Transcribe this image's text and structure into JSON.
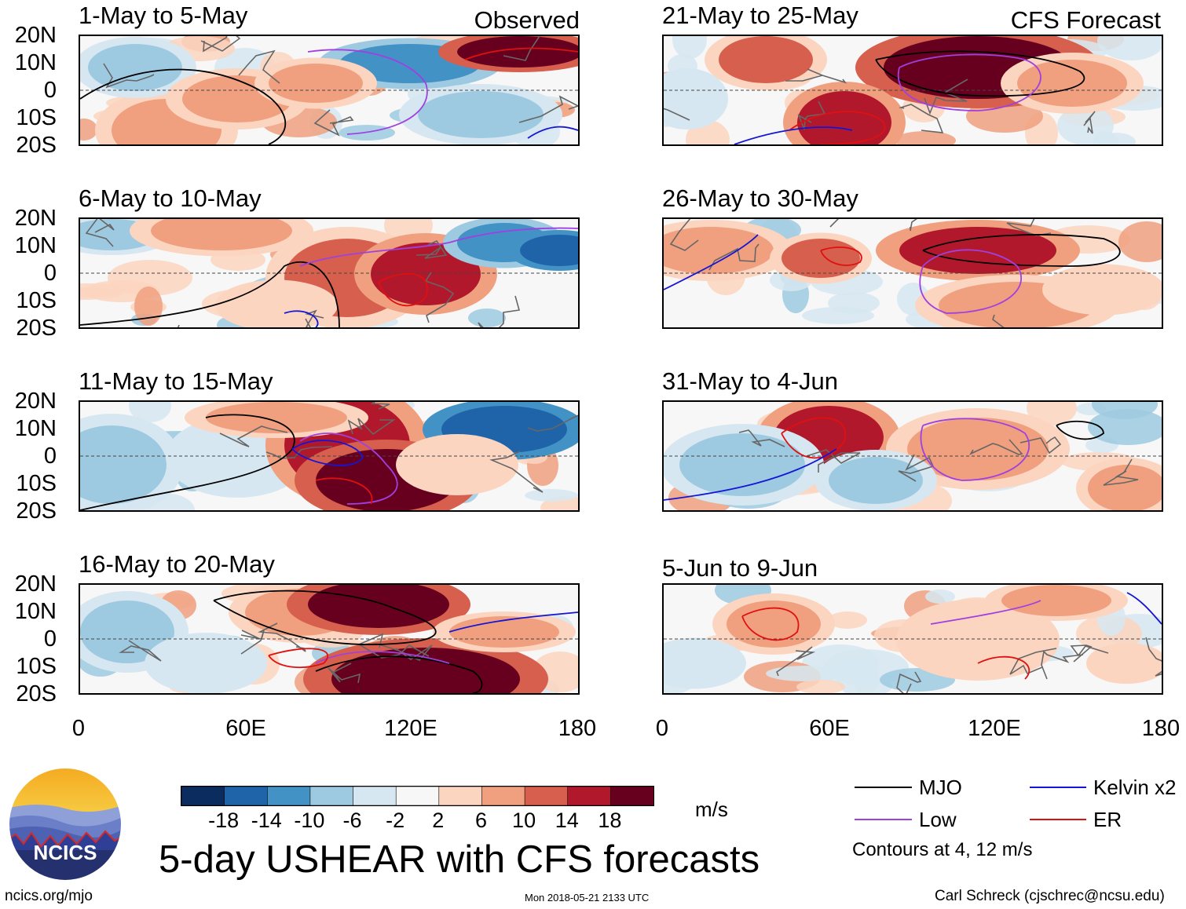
{
  "chart_data": {
    "type": "heatmap",
    "title": "5-day USHEAR with CFS forecasts",
    "units": "m/s",
    "variable": "USHEAR",
    "lat_ticks": [
      "20N",
      "10N",
      "0",
      "10S",
      "20S"
    ],
    "lon_ticks": [
      "0",
      "60E",
      "120E",
      "180"
    ],
    "lon_range": [
      0,
      180
    ],
    "lat_range": [
      -20,
      20
    ],
    "colorbar": {
      "ticks": [
        "-18",
        "-14",
        "-10",
        "-6",
        "-2",
        "2",
        "6",
        "10",
        "14",
        "18"
      ],
      "colors": [
        "#0b2c5f",
        "#1f64a8",
        "#4292c6",
        "#9ecae1",
        "#d6e7f1",
        "#f7f7f7",
        "#fbd5c0",
        "#f0a07f",
        "#d6604d",
        "#b2182b",
        "#67001f"
      ]
    },
    "observed_label": "Observed",
    "forecast_label": "CFS Forecast",
    "panels": [
      {
        "title": "1-May to 5-May",
        "source": "Observed"
      },
      {
        "title": "6-May to 10-May",
        "source": "Observed"
      },
      {
        "title": "11-May to 15-May",
        "source": "Observed"
      },
      {
        "title": "16-May to 20-May",
        "source": "Observed"
      },
      {
        "title": "21-May to 25-May",
        "source": "CFS Forecast"
      },
      {
        "title": "26-May to 30-May",
        "source": "CFS Forecast"
      },
      {
        "title": "31-May to 4-Jun",
        "source": "CFS Forecast"
      },
      {
        "title": "5-Jun to 9-Jun",
        "source": "CFS Forecast"
      }
    ],
    "legend": [
      {
        "name": "MJO",
        "color": "#000000"
      },
      {
        "name": "Kelvin x2",
        "color": "#1515d6"
      },
      {
        "name": "Low",
        "color": "#a040e0"
      },
      {
        "name": "ER",
        "color": "#e01010"
      }
    ],
    "contour_note": "Contours at 4, 12 m/s"
  },
  "logo": {
    "text": "NCICS"
  },
  "footer": {
    "url": "ncics.org/mjo",
    "timestamp": "Mon 2018-05-21 2133 UTC",
    "author": "Carl Schreck (cjschrec@ncsu.edu)"
  }
}
